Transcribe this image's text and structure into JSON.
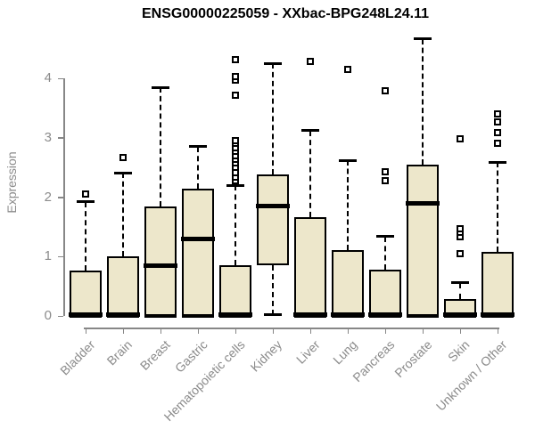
{
  "chart_data": {
    "type": "boxplot",
    "title": "ENSG00000225059 - XXbac-BPG248L24.11",
    "ylabel": "Expression",
    "xlabel": "",
    "ylim": [
      0,
      4.7
    ],
    "yticks": [
      0,
      1,
      2,
      3,
      4
    ],
    "grid": false,
    "legend": "none",
    "categories": [
      "Bladder",
      "Brain",
      "Breast",
      "Gastric",
      "Hematopoietic cells",
      "Kidney",
      "Liver",
      "Lung",
      "Pancreas",
      "Prostate",
      "Skin",
      "Unknown / Other"
    ],
    "boxes": [
      {
        "category": "Bladder",
        "q1": 0,
        "median": 0.02,
        "q3": 0.77,
        "whisker_low": 0,
        "whisker_high": 1.92,
        "outliers": [
          2.05
        ]
      },
      {
        "category": "Brain",
        "q1": 0,
        "median": 0.02,
        "q3": 1.0,
        "whisker_low": 0,
        "whisker_high": 2.41,
        "outliers": [
          2.66
        ]
      },
      {
        "category": "Breast",
        "q1": 0,
        "median": 0.85,
        "q3": 1.84,
        "whisker_low": 0,
        "whisker_high": 3.85,
        "outliers": []
      },
      {
        "category": "Gastric",
        "q1": 0,
        "median": 1.3,
        "q3": 2.14,
        "whisker_low": 0,
        "whisker_high": 2.85,
        "outliers": []
      },
      {
        "category": "Hematopoietic cells",
        "q1": 0,
        "median": 0.02,
        "q3": 0.86,
        "whisker_low": 0,
        "whisker_high": 2.2,
        "outliers": [
          2.28,
          2.34,
          2.41,
          2.5,
          2.57,
          2.63,
          2.7,
          2.77,
          2.83,
          2.9,
          2.95,
          3.72,
          3.97,
          4.03,
          4.31
        ]
      },
      {
        "category": "Kidney",
        "q1": 0.86,
        "median": 1.85,
        "q3": 2.38,
        "whisker_low": 0.02,
        "whisker_high": 4.25,
        "outliers": []
      },
      {
        "category": "Liver",
        "q1": 0,
        "median": 0.02,
        "q3": 1.67,
        "whisker_low": 0,
        "whisker_high": 3.12,
        "outliers": [
          4.28
        ]
      },
      {
        "category": "Lung",
        "q1": 0,
        "median": 0.02,
        "q3": 1.11,
        "whisker_low": 0,
        "whisker_high": 2.62,
        "outliers": [
          4.15
        ]
      },
      {
        "category": "Pancreas",
        "q1": 0,
        "median": 0.02,
        "q3": 0.78,
        "whisker_low": 0,
        "whisker_high": 1.34,
        "outliers": [
          2.28,
          2.43,
          3.79
        ]
      },
      {
        "category": "Prostate",
        "q1": 0,
        "median": 1.9,
        "q3": 2.55,
        "whisker_low": 0,
        "whisker_high": 4.66,
        "outliers": []
      },
      {
        "category": "Skin",
        "q1": 0,
        "median": 0.02,
        "q3": 0.28,
        "whisker_low": 0,
        "whisker_high": 0.56,
        "outliers": [
          1.05,
          1.34,
          1.41,
          1.47,
          2.98
        ]
      },
      {
        "category": "Unknown / Other",
        "q1": 0,
        "median": 0.02,
        "q3": 1.08,
        "whisker_low": 0,
        "whisker_high": 2.59,
        "outliers": [
          2.9,
          3.08,
          3.26,
          3.4
        ]
      }
    ],
    "colors": {
      "box_fill": "#EDE7CB",
      "box_border": "#000000",
      "median": "#000000",
      "axis": "#878787",
      "tick_label": "#8b8b8b",
      "title": "#000000",
      "background": "#ffffff"
    }
  }
}
